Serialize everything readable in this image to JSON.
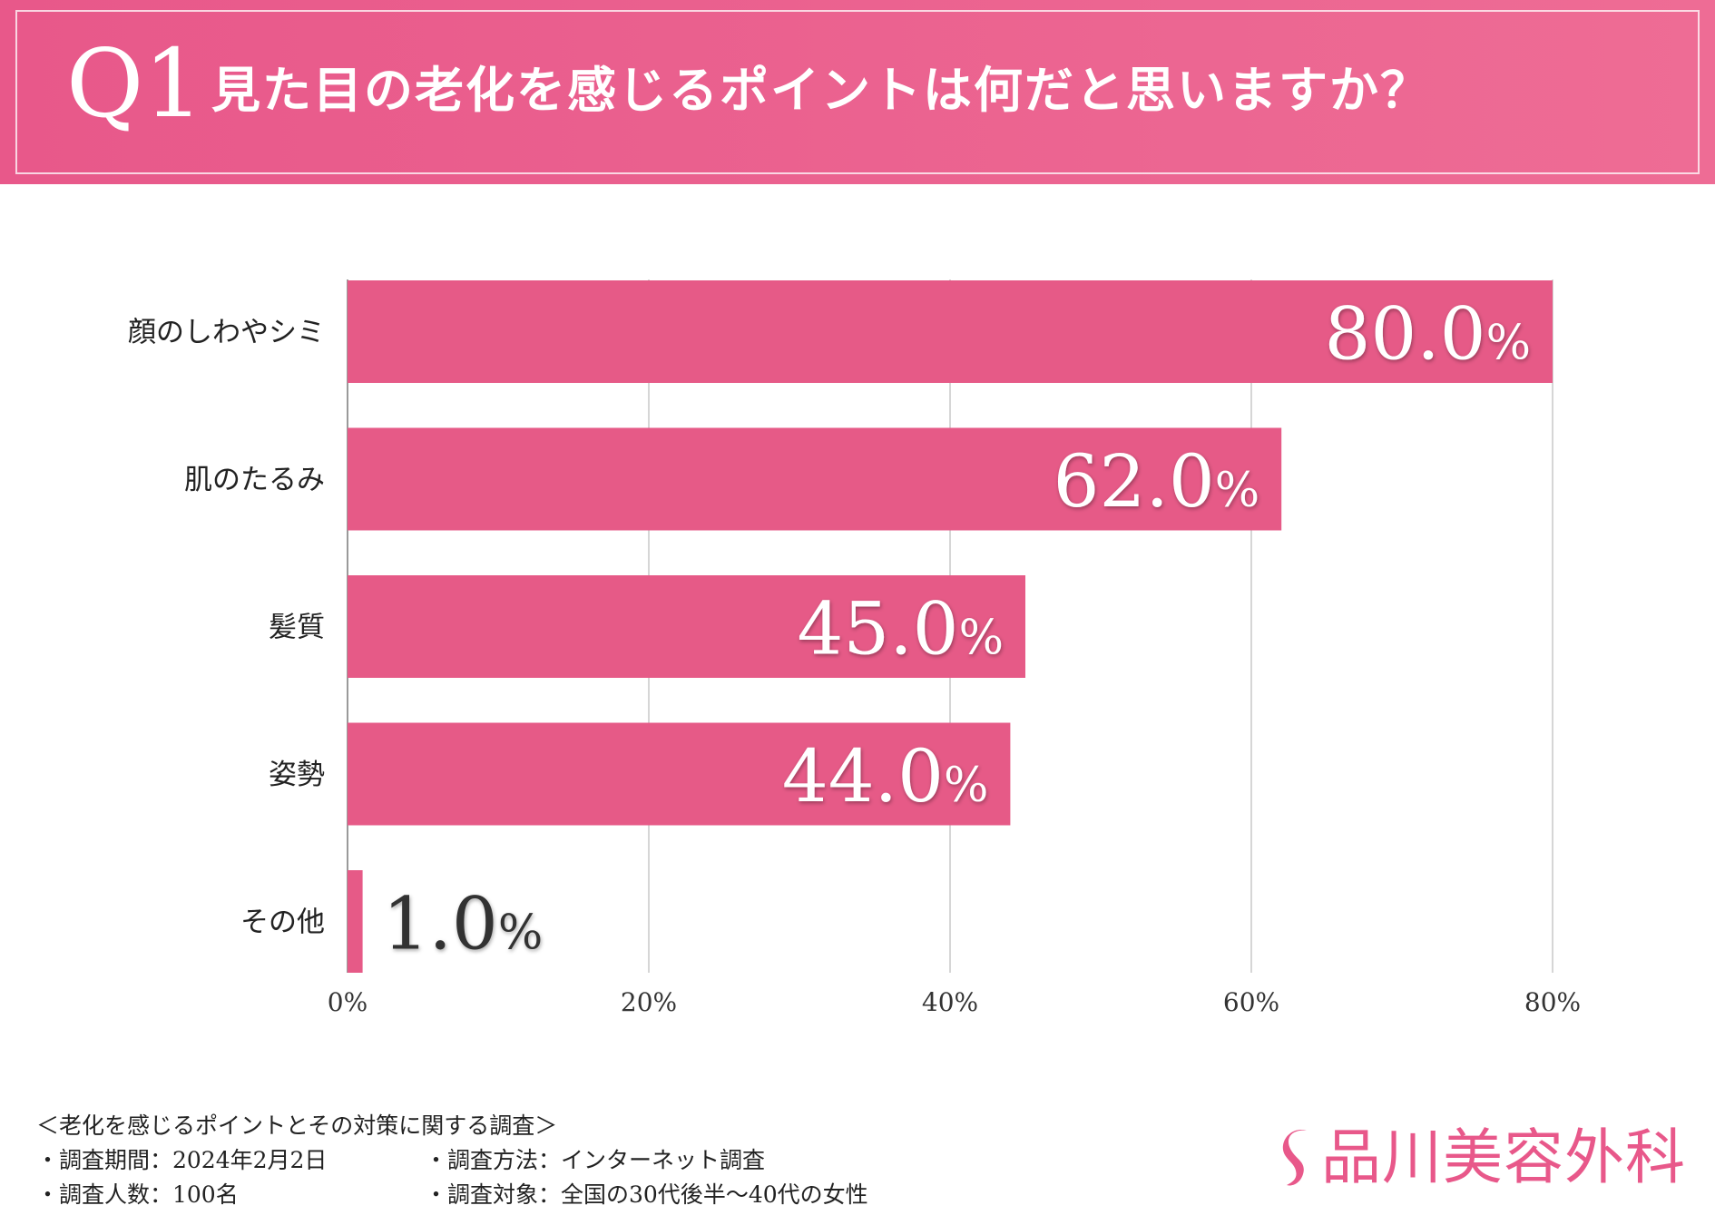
{
  "header": {
    "q_number": "Q1",
    "question": "見た目の老化を感じるポイントは何だと思いますか？"
  },
  "chart_data": {
    "type": "bar",
    "orientation": "horizontal",
    "categories": [
      "顔のしわやシミ",
      "肌のたるみ",
      "髪質",
      "姿勢",
      "その他"
    ],
    "values": [
      80.0,
      62.0,
      45.0,
      44.0,
      1.0
    ],
    "value_labels": [
      "80.0",
      "62.0",
      "45.0",
      "44.0",
      "1.0"
    ],
    "value_suffix": "%",
    "xlim": [
      0,
      80
    ],
    "xticks": [
      0,
      20,
      40,
      60,
      80
    ],
    "xtick_labels": [
      "0%",
      "20%",
      "40%",
      "60%",
      "80%"
    ],
    "grid": true,
    "bar_color": "#e65a87"
  },
  "footer": {
    "survey_title": "＜老化を感じるポイントとその対策に関する調査＞",
    "period": "・調査期間：2024年2月2日",
    "method": "・調査方法：インターネット調査",
    "respondents": "・調査人数：100名",
    "target": "・調査対象：全国の30代後半～40代の女性"
  },
  "brand": {
    "name": "品川美容外科",
    "color": "#e8588a"
  }
}
